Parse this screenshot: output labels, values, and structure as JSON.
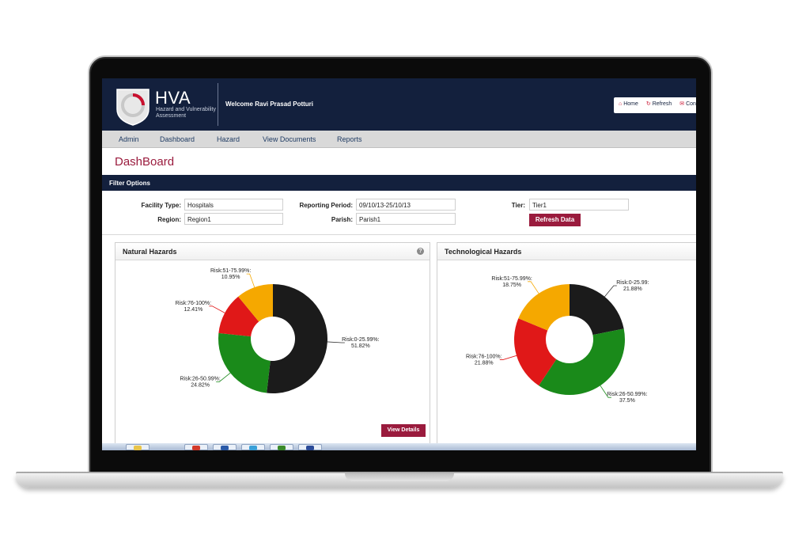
{
  "header": {
    "logo_title": "HVA",
    "logo_subtitle": "Hazard and Vulnerability Assessment",
    "welcome_prefix": "Welcome",
    "user_name": "Ravi Prasad Potturi",
    "links": {
      "home": "Home",
      "refresh": "Refresh",
      "contact": "Con"
    }
  },
  "nav": [
    "Admin",
    "Dashboard",
    "Hazard",
    "View Documents",
    "Reports"
  ],
  "page_title": "DashBoard",
  "filter_title": "Filter Options",
  "filters": {
    "facility_type_label": "Facility Type:",
    "facility_type_value": "Hospitals",
    "region_label": "Region:",
    "region_value": "Region1",
    "reporting_period_label": "Reporting Period:",
    "reporting_period_value": "09/10/13-25/10/13",
    "parish_label": "Parish:",
    "parish_value": "Parish1",
    "tier_label": "Tier:",
    "tier_value": "Tier1",
    "refresh_button": "Refresh Data"
  },
  "panels": {
    "natural_title": "Natural Hazards",
    "technological_title": "Technological Hazards",
    "help_symbol": "?",
    "view_details": "View Details"
  },
  "colors": {
    "header_bg": "#13203d",
    "accent": "#9a1b3d",
    "risk_0_25": "#1b1b1b",
    "risk_26_50": "#1a8a1a",
    "risk_51_75": "#f5a800",
    "risk_76_100": "#e01818"
  },
  "chart_data": [
    {
      "type": "pie",
      "title": "Natural Hazards",
      "categories": [
        "Risk:0-25.99%:",
        "Risk:26-50.99%:",
        "Risk:76-100%:",
        "Risk:51-75.99%:"
      ],
      "values": [
        51.82,
        24.82,
        12.41,
        10.95
      ],
      "value_labels": [
        "51.82%",
        "24.82%",
        "12.41%",
        "10.95%"
      ],
      "legend": "none"
    },
    {
      "type": "pie",
      "title": "Technological Hazards",
      "categories": [
        "Risk:0-25.99:",
        "Risk:26-50.99%:",
        "Risk:76-100%:",
        "Risk:51-75.99%:"
      ],
      "values": [
        21.88,
        37.5,
        21.88,
        18.75
      ],
      "value_labels": [
        "21.88%",
        "37.5%",
        "21.88%",
        "18.75%"
      ],
      "legend": "none"
    }
  ]
}
